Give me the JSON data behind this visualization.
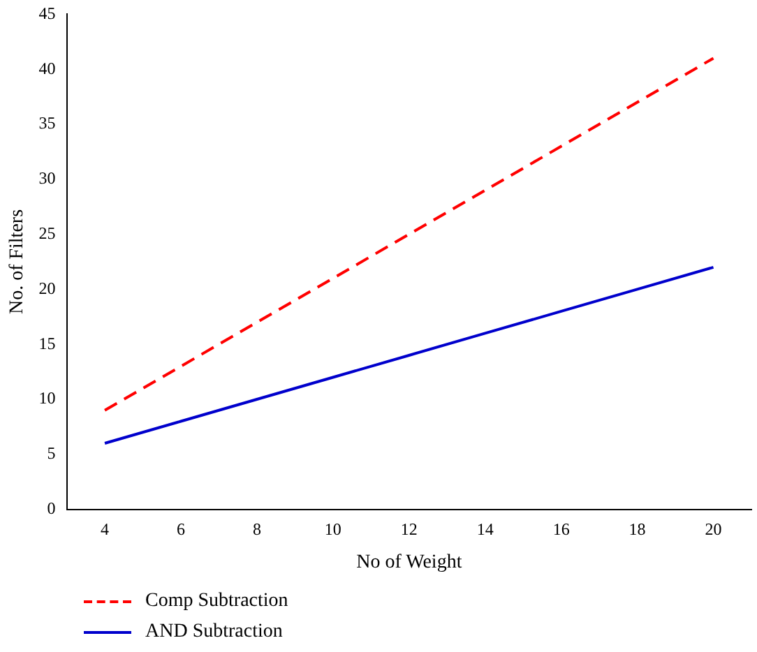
{
  "chart_data": {
    "type": "line",
    "xlabel": "No of Weight",
    "ylabel": "No. of Filters",
    "categories": [
      "4",
      "6",
      "8",
      "10",
      "12",
      "14",
      "16",
      "18",
      "20"
    ],
    "series": [
      {
        "name": "Comp Subtraction",
        "color": "#ff0000",
        "line_style": "dashed",
        "values": [
          9,
          13,
          17,
          21,
          25,
          29,
          33,
          37,
          41
        ]
      },
      {
        "name": "AND Subtraction",
        "color": "#0000cc",
        "line_style": "solid",
        "values": [
          6,
          8,
          10,
          12,
          14,
          16,
          18,
          20,
          22
        ]
      }
    ],
    "ylim": [
      0,
      45
    ],
    "yticks": [
      0,
      5,
      10,
      15,
      20,
      25,
      30,
      35,
      40,
      45
    ],
    "grid": false,
    "legend": "bottom left",
    "marker": "none"
  }
}
